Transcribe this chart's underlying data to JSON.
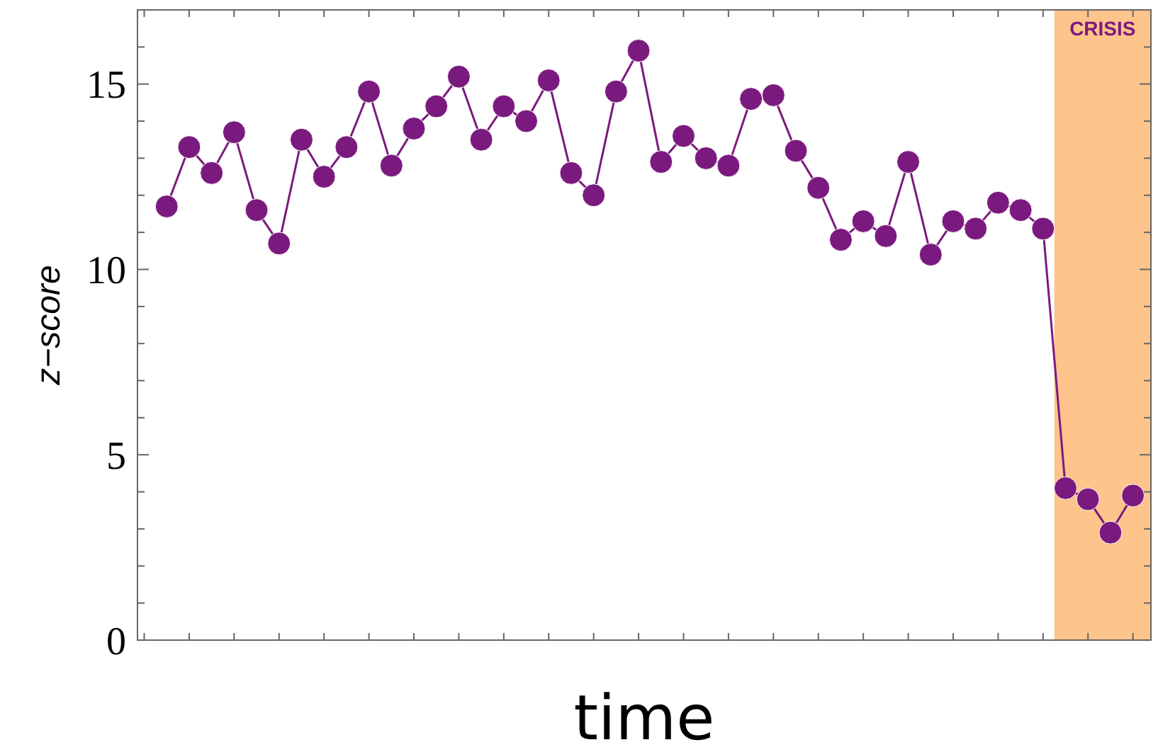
{
  "chart_data": {
    "type": "line",
    "xlabel": "time",
    "ylabel": "z−score",
    "categories": [
      null,
      null,
      null,
      null,
      null,
      null,
      null,
      null,
      null,
      null,
      null,
      null,
      null,
      null,
      null,
      null,
      null,
      null,
      null,
      null,
      null,
      null,
      null,
      null,
      null,
      null,
      null,
      null,
      null,
      null,
      null,
      null,
      null,
      null,
      null,
      null,
      null,
      null,
      null,
      null,
      null,
      null,
      null,
      null
    ],
    "series": [
      {
        "color": "#7b1a7e",
        "values": [
          11.7,
          13.3,
          12.6,
          13.7,
          11.6,
          10.7,
          13.5,
          12.5,
          13.3,
          14.8,
          12.8,
          13.8,
          14.4,
          15.2,
          13.5,
          14.4,
          14.0,
          15.1,
          12.6,
          12.0,
          14.8,
          15.9,
          12.9,
          13.6,
          13.0,
          12.8,
          14.6,
          14.7,
          13.2,
          12.2,
          10.8,
          11.3,
          10.9,
          12.9,
          10.4,
          11.3,
          11.1,
          11.8,
          11.6,
          11.1,
          4.1,
          3.8,
          2.9,
          3.9
        ]
      }
    ],
    "marker": "circle",
    "line_style": "solid",
    "ylim": [
      0,
      17
    ],
    "yticks": [
      0,
      {
        "value": 1,
        "label": null
      },
      {
        "value": 2,
        "label": null
      },
      {
        "value": 3,
        "label": null
      },
      {
        "value": 4,
        "label": null
      },
      5,
      {
        "value": 6,
        "label": null
      },
      {
        "value": 7,
        "label": null
      },
      {
        "value": 8,
        "label": null
      },
      {
        "value": 9,
        "label": null
      },
      10,
      {
        "value": 11,
        "label": null
      },
      {
        "value": 12,
        "label": null
      },
      {
        "value": 13,
        "label": null
      },
      {
        "value": 14,
        "label": null
      },
      15,
      {
        "value": 16,
        "label": null
      },
      {
        "value": 17,
        "label": null
      }
    ],
    "tick_labels": "y",
    "annotations": [
      "CRISIS"
    ]
  }
}
